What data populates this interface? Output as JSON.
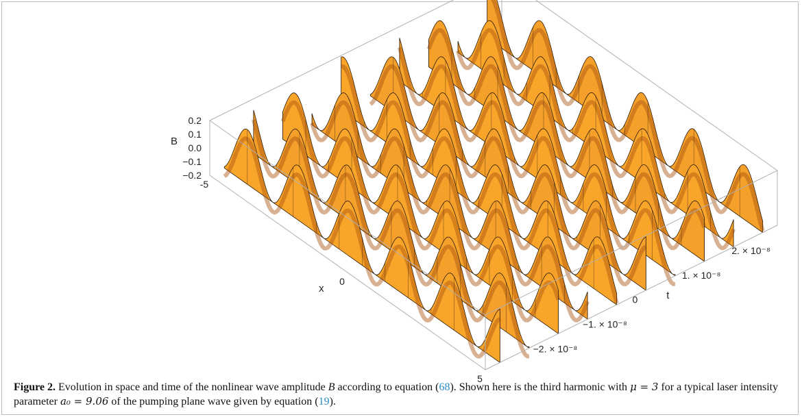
{
  "figure": {
    "label": "Figure 2.",
    "caption_p1": " Evolution in space and time of the nonlinear wave amplitude ",
    "caption_var": "B",
    "caption_p2": " according to equation (",
    "ref1": "68",
    "caption_p3": "). Shown here is the third harmonic with ",
    "mu_eq": "μ = 3",
    "caption_p4": " for a typical laser intensity parameter ",
    "a0_eq": "a₀ = 9.06",
    "caption_p5": " of the pumping plane wave given by equation (",
    "ref2": "19",
    "caption_p6": ")."
  },
  "colors": {
    "surface_light": "#f9a52a",
    "surface_dark": "#a8530d",
    "mesh": "#2b1a0a",
    "box": "#b0b0b0",
    "ref": "#2c8cc9"
  },
  "chart_data": {
    "type": "surface",
    "x_label": "x",
    "y_label": "t",
    "z_label": "B",
    "x_range": [
      -5,
      5
    ],
    "t_range": [
      -2.6e-08,
      2.6e-08
    ],
    "z_range": [
      -0.2,
      0.2
    ],
    "x_ticks": [
      "-5",
      "0",
      "5"
    ],
    "t_ticks": [
      "2. × 10⁻⁸",
      "1. × 10⁻⁸",
      "0",
      "−1. × 10⁻⁸",
      "−2. × 10⁻⁸"
    ],
    "z_ticks": [
      "0.2",
      "0.1",
      "0.0",
      "−0.1",
      "−0.2"
    ],
    "harmonic": 3,
    "mu": 3,
    "a0": 9.06
  }
}
